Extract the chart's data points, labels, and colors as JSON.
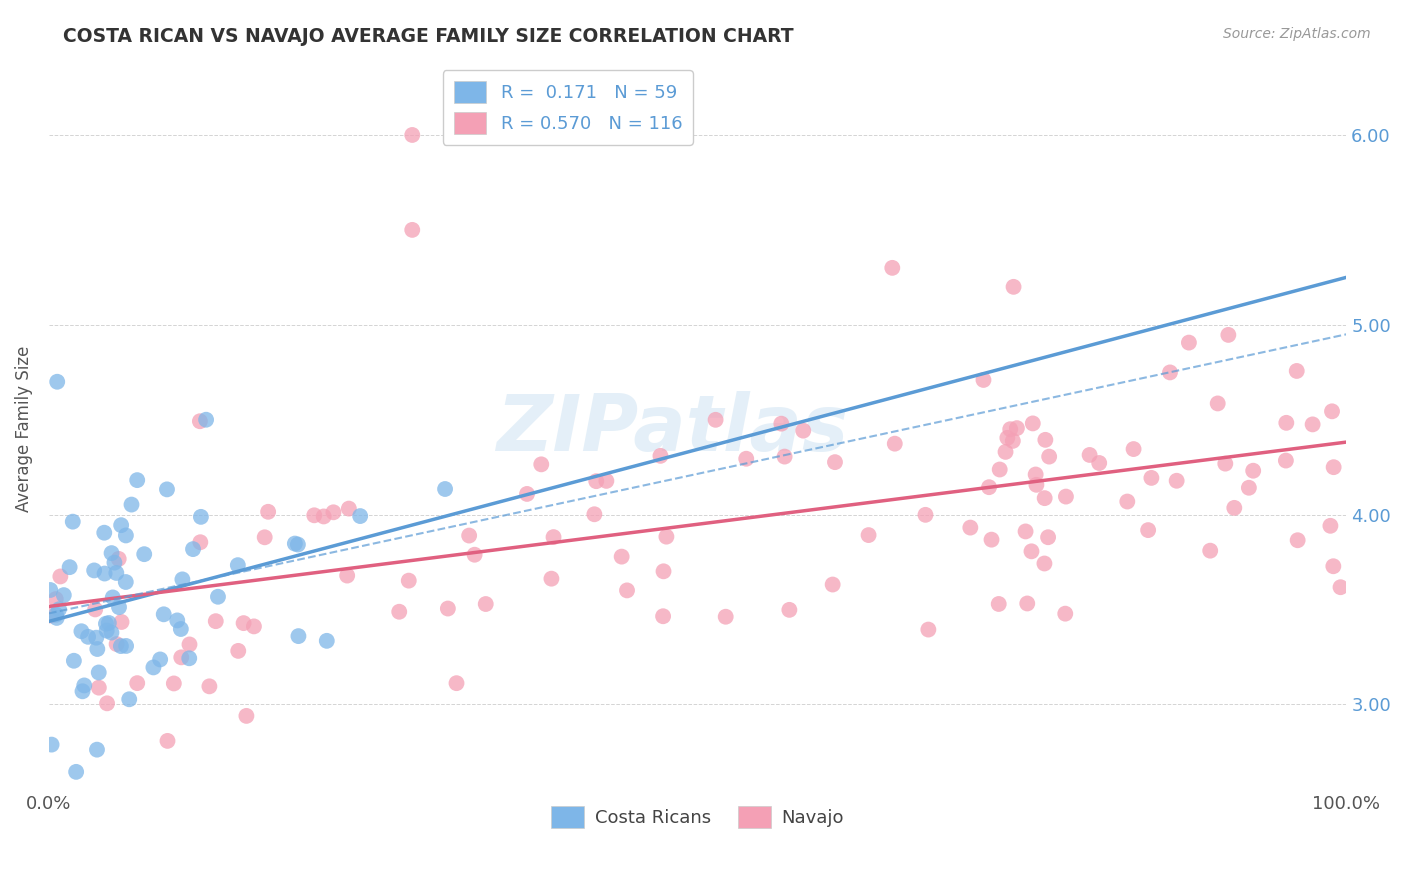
{
  "title": "COSTA RICAN VS NAVAJO AVERAGE FAMILY SIZE CORRELATION CHART",
  "source_text": "Source: ZipAtlas.com",
  "ylabel": "Average Family Size",
  "xlim": [
    0,
    100
  ],
  "ylim": [
    2.55,
    6.35
  ],
  "yticks": [
    3.0,
    4.0,
    5.0,
    6.0
  ],
  "xticklabels": [
    "0.0%",
    "100.0%"
  ],
  "yticklabels": [
    "3.00",
    "4.00",
    "5.00",
    "6.00"
  ],
  "legend_r1": "R =  0.171",
  "legend_n1": "N = 59",
  "legend_r2": "R = 0.570",
  "legend_n2": "N = 116",
  "color_blue": "#7EB6E8",
  "color_pink": "#F4A0B5",
  "color_blue_line": "#5B9BD5",
  "color_pink_line": "#E06080",
  "background": "#FFFFFF",
  "grid_color": "#AAAAAA",
  "watermark": "ZIPatlas",
  "watermark_color": "#A8CCE8",
  "tick_color": "#5B9BD5"
}
